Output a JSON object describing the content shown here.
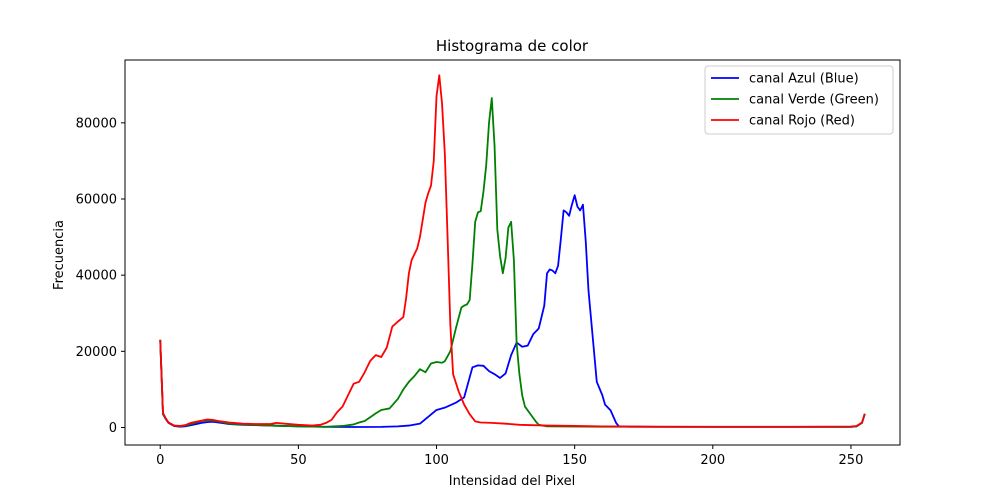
{
  "chart_data": {
    "type": "line",
    "title": "Histograma de color",
    "xlabel": "Intensidad del Pixel",
    "ylabel": "Frecuencia",
    "xlim": [
      -12.75,
      267.75
    ],
    "ylim": [
      -4600,
      96500
    ],
    "x_ticks": [
      0,
      50,
      100,
      150,
      200,
      250
    ],
    "y_ticks": [
      0,
      20000,
      40000,
      60000,
      80000
    ],
    "grid": false,
    "legend_position": "top-right",
    "series": [
      {
        "name": "canal Azul (Blue)",
        "color": "#0000ff",
        "points": [
          [
            0,
            23000
          ],
          [
            1,
            3500
          ],
          [
            2,
            2200
          ],
          [
            3,
            1200
          ],
          [
            5,
            400
          ],
          [
            7,
            200
          ],
          [
            9,
            300
          ],
          [
            11,
            600
          ],
          [
            13,
            900
          ],
          [
            15,
            1200
          ],
          [
            17,
            1400
          ],
          [
            19,
            1500
          ],
          [
            21,
            1300
          ],
          [
            23,
            1100
          ],
          [
            25,
            900
          ],
          [
            30,
            700
          ],
          [
            40,
            500
          ],
          [
            50,
            300
          ],
          [
            60,
            150
          ],
          [
            70,
            120
          ],
          [
            80,
            150
          ],
          [
            86,
            300
          ],
          [
            90,
            500
          ],
          [
            94,
            1000
          ],
          [
            97,
            2800
          ],
          [
            100,
            4600
          ],
          [
            103,
            5200
          ],
          [
            107,
            6500
          ],
          [
            110,
            7900
          ],
          [
            113,
            15800
          ],
          [
            115,
            16300
          ],
          [
            117,
            16200
          ],
          [
            119,
            14800
          ],
          [
            121,
            14000
          ],
          [
            123,
            13000
          ],
          [
            125,
            14200
          ],
          [
            127,
            19000
          ],
          [
            129,
            22300
          ],
          [
            131,
            21200
          ],
          [
            133,
            21500
          ],
          [
            135,
            24500
          ],
          [
            137,
            26000
          ],
          [
            139,
            32000
          ],
          [
            140,
            40500
          ],
          [
            141,
            41500
          ],
          [
            142,
            41200
          ],
          [
            143,
            40500
          ],
          [
            144,
            42500
          ],
          [
            145,
            49500
          ],
          [
            146,
            57000
          ],
          [
            147,
            56500
          ],
          [
            148,
            55600
          ],
          [
            149,
            58500
          ],
          [
            150,
            61000
          ],
          [
            151,
            58000
          ],
          [
            152,
            57000
          ],
          [
            153,
            58500
          ],
          [
            154,
            49000
          ],
          [
            155,
            36000
          ],
          [
            156,
            28000
          ],
          [
            157,
            20000
          ],
          [
            158,
            12000
          ],
          [
            160,
            8500
          ],
          [
            161,
            6000
          ],
          [
            163,
            4500
          ],
          [
            165,
            1200
          ],
          [
            166,
            300
          ],
          [
            170,
            200
          ],
          [
            200,
            150
          ],
          [
            250,
            150
          ],
          [
            252,
            300
          ],
          [
            254,
            1200
          ],
          [
            255,
            3600
          ]
        ]
      },
      {
        "name": "canal Verde (Green)",
        "color": "#008000",
        "points": [
          [
            0,
            23000
          ],
          [
            1,
            3600
          ],
          [
            2,
            2300
          ],
          [
            3,
            1300
          ],
          [
            5,
            500
          ],
          [
            7,
            300
          ],
          [
            9,
            500
          ],
          [
            11,
            900
          ],
          [
            13,
            1300
          ],
          [
            15,
            1700
          ],
          [
            17,
            1900
          ],
          [
            19,
            1800
          ],
          [
            21,
            1600
          ],
          [
            25,
            1000
          ],
          [
            30,
            800
          ],
          [
            40,
            500
          ],
          [
            50,
            300
          ],
          [
            60,
            200
          ],
          [
            66,
            400
          ],
          [
            70,
            800
          ],
          [
            72,
            1300
          ],
          [
            74,
            1700
          ],
          [
            76,
            2700
          ],
          [
            78,
            3700
          ],
          [
            80,
            4600
          ],
          [
            83,
            5000
          ],
          [
            86,
            7500
          ],
          [
            88,
            10000
          ],
          [
            90,
            12000
          ],
          [
            92,
            13500
          ],
          [
            94,
            15300
          ],
          [
            96,
            14500
          ],
          [
            98,
            16800
          ],
          [
            100,
            17200
          ],
          [
            102,
            17000
          ],
          [
            103,
            17400
          ],
          [
            105,
            20000
          ],
          [
            107,
            26000
          ],
          [
            109,
            31500
          ],
          [
            110,
            32000
          ],
          [
            111,
            32300
          ],
          [
            112,
            33500
          ],
          [
            113,
            43000
          ],
          [
            114,
            54000
          ],
          [
            115,
            56500
          ],
          [
            116,
            56800
          ],
          [
            117,
            62000
          ],
          [
            118,
            69000
          ],
          [
            119,
            80000
          ],
          [
            120,
            86500
          ],
          [
            121,
            74000
          ],
          [
            122,
            52000
          ],
          [
            123,
            45000
          ],
          [
            124,
            40500
          ],
          [
            125,
            44500
          ],
          [
            126,
            52500
          ],
          [
            127,
            54000
          ],
          [
            128,
            44000
          ],
          [
            129,
            22000
          ],
          [
            130,
            14000
          ],
          [
            131,
            8500
          ],
          [
            132,
            5500
          ],
          [
            134,
            3500
          ],
          [
            136,
            1500
          ],
          [
            137,
            700
          ],
          [
            140,
            300
          ],
          [
            160,
            200
          ],
          [
            200,
            150
          ],
          [
            250,
            150
          ],
          [
            252,
            300
          ],
          [
            254,
            1200
          ],
          [
            255,
            3600
          ]
        ]
      },
      {
        "name": "canal Rojo (Red)",
        "color": "#ff0000",
        "points": [
          [
            0,
            23000
          ],
          [
            1,
            3800
          ],
          [
            2,
            2400
          ],
          [
            3,
            1300
          ],
          [
            5,
            500
          ],
          [
            7,
            400
          ],
          [
            9,
            600
          ],
          [
            11,
            1200
          ],
          [
            13,
            1500
          ],
          [
            15,
            1800
          ],
          [
            17,
            2100
          ],
          [
            19,
            2000
          ],
          [
            21,
            1700
          ],
          [
            25,
            1300
          ],
          [
            30,
            1000
          ],
          [
            35,
            900
          ],
          [
            40,
            900
          ],
          [
            42,
            1200
          ],
          [
            45,
            1000
          ],
          [
            50,
            700
          ],
          [
            55,
            500
          ],
          [
            58,
            700
          ],
          [
            60,
            1200
          ],
          [
            62,
            2000
          ],
          [
            64,
            4000
          ],
          [
            66,
            5500
          ],
          [
            68,
            8500
          ],
          [
            70,
            11500
          ],
          [
            72,
            12000
          ],
          [
            74,
            14500
          ],
          [
            76,
            17500
          ],
          [
            78,
            19000
          ],
          [
            80,
            18500
          ],
          [
            82,
            21000
          ],
          [
            84,
            26500
          ],
          [
            86,
            27800
          ],
          [
            88,
            29000
          ],
          [
            89,
            34000
          ],
          [
            90,
            40500
          ],
          [
            91,
            44000
          ],
          [
            93,
            47000
          ],
          [
            94,
            50000
          ],
          [
            96,
            59000
          ],
          [
            97,
            61500
          ],
          [
            98,
            63500
          ],
          [
            99,
            70000
          ],
          [
            100,
            87000
          ],
          [
            101,
            92500
          ],
          [
            102,
            85000
          ],
          [
            103,
            72000
          ],
          [
            104,
            50000
          ],
          [
            105,
            27000
          ],
          [
            106,
            14000
          ],
          [
            108,
            9500
          ],
          [
            110,
            6000
          ],
          [
            112,
            3500
          ],
          [
            114,
            1600
          ],
          [
            116,
            1300
          ],
          [
            120,
            1200
          ],
          [
            125,
            1000
          ],
          [
            130,
            700
          ],
          [
            140,
            500
          ],
          [
            150,
            400
          ],
          [
            160,
            300
          ],
          [
            180,
            200
          ],
          [
            200,
            200
          ],
          [
            230,
            200
          ],
          [
            250,
            250
          ],
          [
            252,
            400
          ],
          [
            254,
            1300
          ],
          [
            255,
            3500
          ]
        ]
      }
    ]
  }
}
